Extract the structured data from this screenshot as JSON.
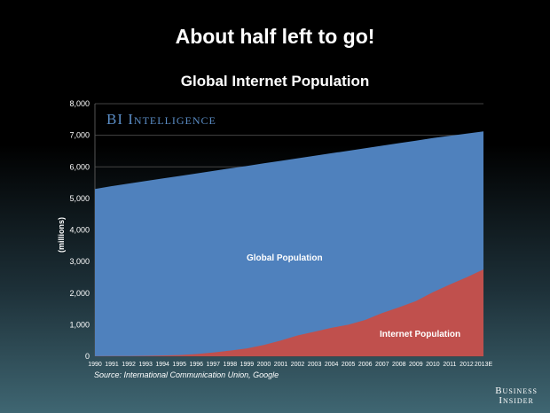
{
  "header": {
    "title": "About half left to go!"
  },
  "watermark": "BI Intelligence",
  "source": "Source: International Communication Union, Google",
  "logo": {
    "line1": "Business",
    "line2": "Insider"
  },
  "chart_data": {
    "type": "area",
    "title": "Global Internet Population",
    "xlabel": "",
    "ylabel": "(millions)",
    "ylim": [
      0,
      8000
    ],
    "yticks": [
      "0",
      "1,000",
      "2,000",
      "3,000",
      "4,000",
      "5,000",
      "6,000",
      "7,000",
      "8,000"
    ],
    "categories": [
      "1990",
      "1991",
      "1992",
      "1993",
      "1994",
      "1995",
      "1996",
      "1997",
      "1998",
      "1999",
      "2000",
      "2001",
      "2002",
      "2003",
      "2004",
      "2005",
      "2006",
      "2007",
      "2008",
      "2009",
      "2010",
      "2011",
      "2012",
      "2013E"
    ],
    "series": [
      {
        "name": "Global Population",
        "color": "#4f81bd",
        "values": [
          5300,
          5390,
          5470,
          5550,
          5630,
          5710,
          5790,
          5870,
          5950,
          6030,
          6110,
          6190,
          6270,
          6350,
          6430,
          6510,
          6590,
          6670,
          6750,
          6830,
          6910,
          6980,
          7050,
          7120
        ]
      },
      {
        "name": "Internet Population",
        "color": "#c0504d",
        "values": [
          3,
          5,
          9,
          14,
          25,
          40,
          70,
          120,
          180,
          250,
          360,
          500,
          660,
          780,
          900,
          1000,
          1150,
          1370,
          1550,
          1750,
          2030,
          2270,
          2500,
          2750
        ]
      }
    ],
    "labels": {
      "global": "Global Population",
      "internet": "Internet Population"
    }
  }
}
